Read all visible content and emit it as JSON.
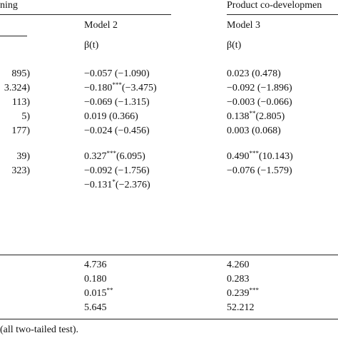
{
  "header": {
    "group_left": "ning",
    "group_right": "Product co-developmen",
    "model_2": "Model 2",
    "model_3": "Model 3",
    "stat_2": "β(t)",
    "stat_3": "β(t)"
  },
  "rows": [
    [
      [
        "895)"
      ],
      [
        "−0.057 (−1.090)"
      ],
      [
        "0.023 (0.478)"
      ]
    ],
    [
      [
        "3.324)"
      ],
      [
        "−0.180",
        "***",
        "(−3.475)"
      ],
      [
        "−0.092 (−1.896)"
      ]
    ],
    [
      [
        "113)"
      ],
      [
        "−0.069 (−1.315)"
      ],
      [
        "−0.003 (−0.066)"
      ]
    ],
    [
      [
        "5)"
      ],
      [
        "0.019 (0.366)"
      ],
      [
        "0.138",
        "**",
        "(2.805)"
      ]
    ],
    [
      [
        "177)"
      ],
      [
        "−0.024 (−0.456)"
      ],
      [
        "0.003 (0.068)"
      ]
    ],
    [
      [
        "39)"
      ],
      [
        "0.327",
        "***",
        "(6.095)"
      ],
      [
        "0.490",
        "***",
        "(10.143)"
      ]
    ],
    [
      [
        "323)"
      ],
      [
        "−0.092 (−1.756)"
      ],
      [
        "−0.076 (−1.579)"
      ]
    ],
    [
      null,
      [
        "−0.131",
        "*",
        "(−2.376)"
      ],
      null
    ]
  ],
  "stats": [
    [
      [
        "4.736"
      ],
      [
        "4.260"
      ]
    ],
    [
      [
        "0.180"
      ],
      [
        "0.283"
      ]
    ],
    [
      [
        "0.015",
        "**"
      ],
      [
        "0.239",
        "***"
      ]
    ],
    [
      [
        "5.645"
      ],
      [
        "52.212"
      ]
    ]
  ],
  "footnote": "(all two-tailed test)."
}
